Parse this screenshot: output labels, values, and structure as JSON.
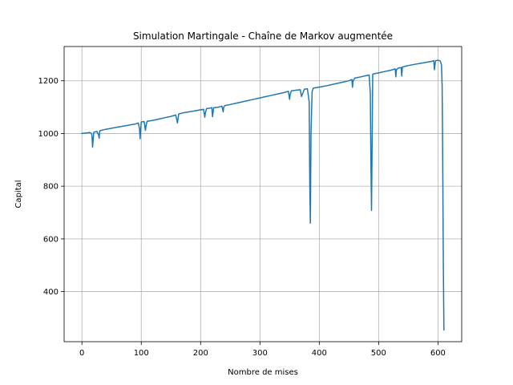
{
  "chart_data": {
    "type": "line",
    "title": "Simulation Martingale - Chaîne de Markov augmentée",
    "xlabel": "Nombre de mises",
    "ylabel": "Capital",
    "xlim": [
      -30,
      640
    ],
    "ylim": [
      210,
      1330
    ],
    "xticks": [
      0,
      100,
      200,
      300,
      400,
      500,
      600
    ],
    "yticks": [
      400,
      600,
      800,
      1000,
      1200
    ],
    "grid": true,
    "series": [
      {
        "color": "#1f77b4",
        "x": [
          0,
          8,
          13,
          16,
          17,
          18,
          20,
          25,
          28,
          29,
          30,
          33,
          40,
          50,
          60,
          70,
          80,
          90,
          95,
          97,
          98,
          100,
          105,
          107,
          108,
          110,
          120,
          130,
          140,
          150,
          158,
          160,
          161,
          163,
          170,
          180,
          190,
          200,
          205,
          207,
          208,
          210,
          215,
          219,
          220,
          222,
          230,
          236,
          238,
          239,
          241,
          250,
          260,
          270,
          280,
          290,
          300,
          310,
          320,
          330,
          340,
          348,
          350,
          351,
          353,
          360,
          368,
          370,
          375,
          380,
          383,
          384,
          385,
          386,
          388,
          390,
          400,
          410,
          420,
          430,
          440,
          450,
          455,
          456,
          457,
          460,
          470,
          480,
          484,
          486,
          487,
          488,
          490,
          495,
          500,
          510,
          520,
          528,
          529,
          530,
          533,
          538,
          539,
          540,
          545,
          550,
          560,
          570,
          580,
          590,
          593,
          594,
          596,
          600,
          604,
          606,
          607,
          608,
          609,
          610
        ],
        "y": [
          1000,
          1002,
          1004,
          1000,
          990,
          948,
          1005,
          1008,
          996,
          982,
          1010,
          1012,
          1016,
          1020,
          1024,
          1028,
          1032,
          1036,
          1040,
          1020,
          980,
          1044,
          1045,
          1012,
          1030,
          1046,
          1050,
          1055,
          1060,
          1065,
          1070,
          1050,
          1040,
          1074,
          1078,
          1082,
          1086,
          1090,
          1092,
          1062,
          1078,
          1094,
          1096,
          1098,
          1064,
          1098,
          1100,
          1104,
          1082,
          1100,
          1106,
          1110,
          1115,
          1120,
          1125,
          1130,
          1135,
          1140,
          1145,
          1150,
          1155,
          1160,
          1130,
          1150,
          1162,
          1164,
          1166,
          1140,
          1168,
          1170,
          1120,
          800,
          660,
          1000,
          1160,
          1172,
          1176,
          1180,
          1185,
          1190,
          1195,
          1200,
          1205,
          1175,
          1200,
          1210,
          1215,
          1220,
          1222,
          1150,
          900,
          708,
          1225,
          1228,
          1230,
          1235,
          1240,
          1245,
          1215,
          1242,
          1248,
          1250,
          1218,
          1252,
          1255,
          1258,
          1262,
          1266,
          1270,
          1274,
          1276,
          1242,
          1276,
          1278,
          1275,
          1260,
          1180,
          900,
          500,
          255
        ]
      }
    ]
  }
}
